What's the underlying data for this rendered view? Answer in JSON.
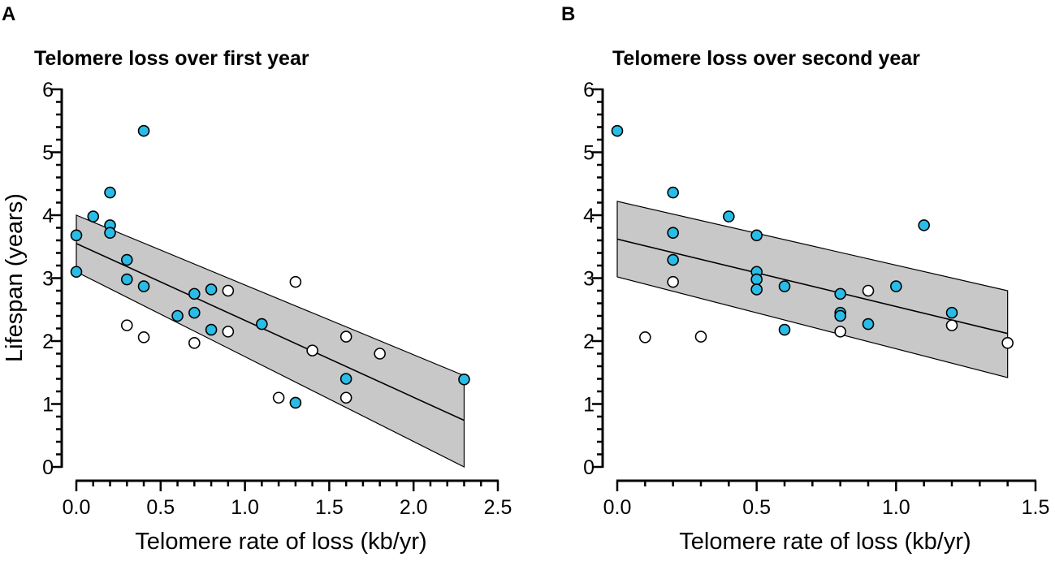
{
  "chart_data": [
    {
      "type": "scatter",
      "panel_label": "A",
      "title": "Telomere loss over first year",
      "xlabel": "Telomere rate of loss (kb/yr)",
      "ylabel": "Lifespan (years)",
      "xlim": [
        0,
        2.5
      ],
      "ylim": [
        0,
        6
      ],
      "x_ticks": [
        0.0,
        0.5,
        1.0,
        1.5,
        2.0,
        2.5
      ],
      "x_tick_labels": [
        "0.0",
        "0.5",
        "1.0",
        "1.5",
        "2.0",
        "2.5"
      ],
      "x_minor_step": 0.1,
      "y_ticks": [
        0,
        1,
        2,
        3,
        4,
        5,
        6
      ],
      "y_tick_labels": [
        "0",
        "1",
        "2",
        "3",
        "4",
        "5",
        "6"
      ],
      "y_minor_step": 0.2,
      "regression": {
        "x": [
          0,
          2.3
        ],
        "fit": [
          3.55,
          0.74
        ],
        "ci_upper": [
          4.0,
          1.45
        ],
        "ci_lower": [
          3.1,
          0.0
        ]
      },
      "series": [
        {
          "name": "filled",
          "color": "#29BCE6",
          "points": [
            [
              0.0,
              3.68
            ],
            [
              0.0,
              3.1
            ],
            [
              0.1,
              3.98
            ],
            [
              0.2,
              4.36
            ],
            [
              0.2,
              3.84
            ],
            [
              0.2,
              3.72
            ],
            [
              0.3,
              3.29
            ],
            [
              0.3,
              2.98
            ],
            [
              0.4,
              5.34
            ],
            [
              0.4,
              2.87
            ],
            [
              0.6,
              2.4
            ],
            [
              0.7,
              2.75
            ],
            [
              0.7,
              2.45
            ],
            [
              0.8,
              2.82
            ],
            [
              0.8,
              2.18
            ],
            [
              1.1,
              2.27
            ],
            [
              1.3,
              1.02
            ],
            [
              1.6,
              1.4
            ],
            [
              2.3,
              1.39
            ]
          ]
        },
        {
          "name": "open",
          "color": "#FFFFFF",
          "points": [
            [
              0.3,
              2.25
            ],
            [
              0.4,
              2.06
            ],
            [
              0.7,
              1.97
            ],
            [
              0.9,
              2.8
            ],
            [
              0.9,
              2.15
            ],
            [
              1.2,
              1.1
            ],
            [
              1.3,
              2.94
            ],
            [
              1.4,
              1.85
            ],
            [
              1.6,
              2.07
            ],
            [
              1.6,
              1.1
            ],
            [
              1.8,
              1.8
            ]
          ]
        }
      ]
    },
    {
      "type": "scatter",
      "panel_label": "B",
      "title": "Telomere loss over second year",
      "xlabel": "Telomere rate of loss (kb/yr)",
      "ylabel": "",
      "xlim": [
        0,
        1.5
      ],
      "ylim": [
        0,
        6
      ],
      "x_ticks": [
        0.0,
        0.5,
        1.0,
        1.5
      ],
      "x_tick_labels": [
        "0.0",
        "0.5",
        "1.0",
        "1.5"
      ],
      "x_minor_step": 0.1,
      "y_ticks": [
        0,
        1,
        2,
        3,
        4,
        5,
        6
      ],
      "y_tick_labels": [
        "0",
        "1",
        "2",
        "3",
        "4",
        "5",
        "6"
      ],
      "y_minor_step": 0.2,
      "regression": {
        "x": [
          0,
          1.4
        ],
        "fit": [
          3.62,
          2.12
        ],
        "ci_upper": [
          4.22,
          2.8
        ],
        "ci_lower": [
          3.02,
          1.42
        ]
      },
      "series": [
        {
          "name": "filled",
          "color": "#29BCE6",
          "points": [
            [
              0.0,
              5.34
            ],
            [
              0.2,
              4.36
            ],
            [
              0.2,
              3.72
            ],
            [
              0.2,
              3.29
            ],
            [
              0.4,
              3.98
            ],
            [
              0.5,
              3.68
            ],
            [
              0.5,
              3.1
            ],
            [
              0.5,
              2.98
            ],
            [
              0.5,
              2.82
            ],
            [
              0.6,
              2.87
            ],
            [
              0.6,
              2.18
            ],
            [
              0.8,
              2.75
            ],
            [
              0.8,
              2.45
            ],
            [
              0.8,
              2.4
            ],
            [
              0.9,
              2.27
            ],
            [
              1.0,
              2.87
            ],
            [
              1.1,
              3.84
            ],
            [
              1.2,
              2.45
            ]
          ]
        },
        {
          "name": "open",
          "color": "#FFFFFF",
          "points": [
            [
              0.1,
              2.06
            ],
            [
              0.2,
              2.94
            ],
            [
              0.3,
              2.07
            ],
            [
              0.8,
              2.15
            ],
            [
              0.9,
              2.8
            ],
            [
              1.2,
              2.25
            ],
            [
              1.4,
              1.97
            ]
          ]
        }
      ]
    }
  ]
}
